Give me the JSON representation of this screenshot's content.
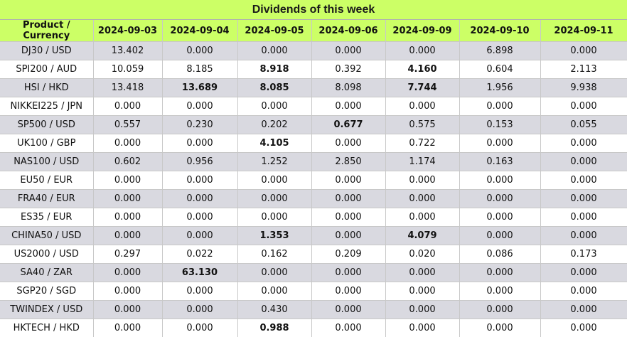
{
  "title": "Dividends of this week",
  "headers": [
    "Product / Currency",
    "2024-09-03",
    "2024-09-04",
    "2024-09-05",
    "2024-09-06",
    "2024-09-09",
    "2024-09-10",
    "2024-09-11"
  ],
  "rows": [
    {
      "product": "DJ30 / USD",
      "values": [
        "13.402",
        "0.000",
        "0.000",
        "0.000",
        "0.000",
        "6.898",
        "0.000"
      ],
      "bold": []
    },
    {
      "product": "SPI200 / AUD",
      "values": [
        "10.059",
        "8.185",
        "8.918",
        "0.392",
        "4.160",
        "0.604",
        "2.113"
      ],
      "bold": [
        2,
        4
      ]
    },
    {
      "product": "HSI / HKD",
      "values": [
        "13.418",
        "13.689",
        "8.085",
        "8.098",
        "7.744",
        "1.956",
        "9.938"
      ],
      "bold": [
        1,
        2,
        4
      ]
    },
    {
      "product": "NIKKEI225 / JPN",
      "values": [
        "0.000",
        "0.000",
        "0.000",
        "0.000",
        "0.000",
        "0.000",
        "0.000"
      ],
      "bold": []
    },
    {
      "product": "SP500 / USD",
      "values": [
        "0.557",
        "0.230",
        "0.202",
        "0.677",
        "0.575",
        "0.153",
        "0.055"
      ],
      "bold": [
        3
      ]
    },
    {
      "product": "UK100 / GBP",
      "values": [
        "0.000",
        "0.000",
        "4.105",
        "0.000",
        "0.722",
        "0.000",
        "0.000"
      ],
      "bold": [
        2
      ]
    },
    {
      "product": "NAS100 / USD",
      "values": [
        "0.602",
        "0.956",
        "1.252",
        "2.850",
        "1.174",
        "0.163",
        "0.000"
      ],
      "bold": []
    },
    {
      "product": "EU50 / EUR",
      "values": [
        "0.000",
        "0.000",
        "0.000",
        "0.000",
        "0.000",
        "0.000",
        "0.000"
      ],
      "bold": []
    },
    {
      "product": "FRA40 / EUR",
      "values": [
        "0.000",
        "0.000",
        "0.000",
        "0.000",
        "0.000",
        "0.000",
        "0.000"
      ],
      "bold": []
    },
    {
      "product": "ES35 / EUR",
      "values": [
        "0.000",
        "0.000",
        "0.000",
        "0.000",
        "0.000",
        "0.000",
        "0.000"
      ],
      "bold": []
    },
    {
      "product": "CHINA50 / USD",
      "values": [
        "0.000",
        "0.000",
        "1.353",
        "0.000",
        "4.079",
        "0.000",
        "0.000"
      ],
      "bold": [
        2,
        4
      ]
    },
    {
      "product": "US2000 / USD",
      "values": [
        "0.297",
        "0.022",
        "0.162",
        "0.209",
        "0.020",
        "0.086",
        "0.173"
      ],
      "bold": []
    },
    {
      "product": "SA40 / ZAR",
      "values": [
        "0.000",
        "63.130",
        "0.000",
        "0.000",
        "0.000",
        "0.000",
        "0.000"
      ],
      "bold": [
        1
      ]
    },
    {
      "product": "SGP20 / SGD",
      "values": [
        "0.000",
        "0.000",
        "0.000",
        "0.000",
        "0.000",
        "0.000",
        "0.000"
      ],
      "bold": []
    },
    {
      "product": "TWINDEX / USD",
      "values": [
        "0.000",
        "0.000",
        "0.430",
        "0.000",
        "0.000",
        "0.000",
        "0.000"
      ],
      "bold": []
    },
    {
      "product": "HKTECH / HKD",
      "values": [
        "0.000",
        "0.000",
        "0.988",
        "0.000",
        "0.000",
        "0.000",
        "0.000"
      ],
      "bold": [
        2
      ]
    }
  ],
  "colors": {
    "header_bg": "#ccff66",
    "row_alt_bg": "#d9d9e0",
    "row_bg": "#ffffff"
  }
}
